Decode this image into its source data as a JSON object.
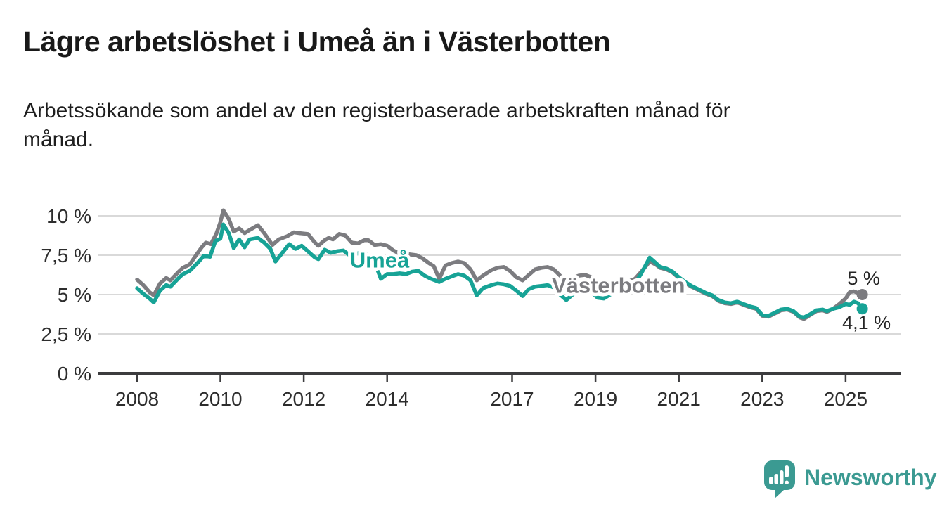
{
  "header": {
    "title": "Lägre arbetslöshet i Umeå än i Västerbotten",
    "subtitle_line1": "Arbetssökande som andel av den registerbaserade arbetskraften månad för",
    "subtitle_line2": "månad."
  },
  "footer": {
    "brand": "Newsworthy",
    "logo_icon": "speech-bubble-bar-chart-icon",
    "logo_color": "#3B9A92"
  },
  "chart_data": {
    "type": "line",
    "title": "Lägre arbetslöshet i Umeå än i Västerbotten",
    "subtitle": "Arbetssökande som andel av den registerbaserade arbetskraften månad för månad.",
    "x_unit": "decimal_year_monthly",
    "y_unit": "percent_of_registered_workforce",
    "xlim": [
      2007.073,
      2026.335
    ],
    "ylim": [
      0,
      10.5
    ],
    "grid": "horizontal",
    "axis_color": "#3C3C3E",
    "grid_color": "#D9D9D9",
    "y_ticks": [
      {
        "value": 0,
        "label": "0 %"
      },
      {
        "value": 2.5,
        "label": "2,5 %"
      },
      {
        "value": 5,
        "label": "5 %"
      },
      {
        "value": 7.5,
        "label": "7,5 %"
      },
      {
        "value": 10,
        "label": "10 %"
      }
    ],
    "x_ticks": [
      {
        "value": 2008,
        "label": "2008"
      },
      {
        "value": 2010,
        "label": "2010"
      },
      {
        "value": 2012,
        "label": "2012"
      },
      {
        "value": 2014,
        "label": "2014"
      },
      {
        "value": 2017,
        "label": "2017"
      },
      {
        "value": 2019,
        "label": "2019"
      },
      {
        "value": 2021,
        "label": "2021"
      },
      {
        "value": 2023,
        "label": "2023"
      },
      {
        "value": 2025,
        "label": "2025"
      }
    ],
    "series": [
      {
        "name": "Västerbotten",
        "color": "#7C7C80",
        "inline_label": {
          "text": "Västerbotten",
          "x": 2019.55,
          "y": 5.6
        },
        "end_label": "5 %",
        "end_value": 5.0,
        "points": [
          [
            2008.0,
            5.95
          ],
          [
            2008.15,
            5.6
          ],
          [
            2008.3,
            5.15
          ],
          [
            2008.4,
            4.95
          ],
          [
            2008.55,
            5.7
          ],
          [
            2008.7,
            6.05
          ],
          [
            2008.8,
            5.9
          ],
          [
            2009.0,
            6.45
          ],
          [
            2009.1,
            6.7
          ],
          [
            2009.26,
            6.9
          ],
          [
            2009.43,
            7.55
          ],
          [
            2009.55,
            8.0
          ],
          [
            2009.65,
            8.3
          ],
          [
            2009.77,
            8.2
          ],
          [
            2009.9,
            8.85
          ],
          [
            2010.0,
            9.6
          ],
          [
            2010.07,
            10.35
          ],
          [
            2010.2,
            9.8
          ],
          [
            2010.32,
            9.0
          ],
          [
            2010.45,
            9.2
          ],
          [
            2010.58,
            8.9
          ],
          [
            2010.7,
            9.1
          ],
          [
            2010.9,
            9.4
          ],
          [
            2011.05,
            8.9
          ],
          [
            2011.25,
            8.15
          ],
          [
            2011.4,
            8.5
          ],
          [
            2011.6,
            8.7
          ],
          [
            2011.76,
            8.95
          ],
          [
            2011.9,
            8.9
          ],
          [
            2012.1,
            8.85
          ],
          [
            2012.27,
            8.3
          ],
          [
            2012.35,
            8.1
          ],
          [
            2012.5,
            8.45
          ],
          [
            2012.6,
            8.6
          ],
          [
            2012.7,
            8.5
          ],
          [
            2012.85,
            8.85
          ],
          [
            2013.0,
            8.75
          ],
          [
            2013.15,
            8.3
          ],
          [
            2013.3,
            8.25
          ],
          [
            2013.45,
            8.45
          ],
          [
            2013.55,
            8.45
          ],
          [
            2013.7,
            8.15
          ],
          [
            2013.85,
            8.2
          ],
          [
            2014.0,
            8.1
          ],
          [
            2014.15,
            7.8
          ],
          [
            2014.3,
            7.6
          ],
          [
            2014.55,
            7.55
          ],
          [
            2014.7,
            7.5
          ],
          [
            2014.85,
            7.3
          ],
          [
            2015.0,
            7.0
          ],
          [
            2015.12,
            6.8
          ],
          [
            2015.25,
            6.0
          ],
          [
            2015.4,
            6.85
          ],
          [
            2015.55,
            7.0
          ],
          [
            2015.7,
            7.1
          ],
          [
            2015.85,
            7.0
          ],
          [
            2016.0,
            6.6
          ],
          [
            2016.15,
            5.9
          ],
          [
            2016.3,
            6.2
          ],
          [
            2016.5,
            6.55
          ],
          [
            2016.65,
            6.7
          ],
          [
            2016.8,
            6.75
          ],
          [
            2016.95,
            6.5
          ],
          [
            2017.1,
            6.1
          ],
          [
            2017.25,
            5.9
          ],
          [
            2017.4,
            6.25
          ],
          [
            2017.55,
            6.6
          ],
          [
            2017.7,
            6.7
          ],
          [
            2017.85,
            6.75
          ],
          [
            2018.0,
            6.6
          ],
          [
            2018.15,
            6.2
          ],
          [
            2018.3,
            5.9
          ],
          [
            2018.45,
            6.05
          ],
          [
            2018.6,
            6.2
          ],
          [
            2018.75,
            6.25
          ],
          [
            2018.9,
            6.1
          ],
          [
            2019.05,
            5.75
          ],
          [
            2019.2,
            5.55
          ],
          [
            2019.35,
            5.65
          ],
          [
            2019.5,
            5.7
          ],
          [
            2019.65,
            5.8
          ],
          [
            2019.8,
            5.85
          ],
          [
            2019.95,
            6.0
          ],
          [
            2020.1,
            6.45
          ],
          [
            2020.3,
            7.1
          ],
          [
            2020.45,
            6.9
          ],
          [
            2020.55,
            6.7
          ],
          [
            2020.7,
            6.6
          ],
          [
            2020.85,
            6.4
          ],
          [
            2021.0,
            6.05
          ],
          [
            2021.15,
            5.75
          ],
          [
            2021.3,
            5.5
          ],
          [
            2021.5,
            5.25
          ],
          [
            2021.65,
            5.05
          ],
          [
            2021.8,
            4.9
          ],
          [
            2021.95,
            4.6
          ],
          [
            2022.1,
            4.45
          ],
          [
            2022.25,
            4.4
          ],
          [
            2022.4,
            4.5
          ],
          [
            2022.55,
            4.35
          ],
          [
            2022.7,
            4.2
          ],
          [
            2022.85,
            4.1
          ],
          [
            2023.0,
            3.65
          ],
          [
            2023.15,
            3.6
          ],
          [
            2023.3,
            3.8
          ],
          [
            2023.45,
            4.0
          ],
          [
            2023.6,
            4.05
          ],
          [
            2023.75,
            3.9
          ],
          [
            2023.9,
            3.55
          ],
          [
            2024.0,
            3.45
          ],
          [
            2024.15,
            3.7
          ],
          [
            2024.3,
            3.95
          ],
          [
            2024.45,
            4.0
          ],
          [
            2024.55,
            3.9
          ],
          [
            2024.7,
            4.1
          ],
          [
            2024.85,
            4.4
          ],
          [
            2025.0,
            4.75
          ],
          [
            2025.1,
            5.15
          ],
          [
            2025.2,
            5.2
          ],
          [
            2025.3,
            5.1
          ],
          [
            2025.4,
            5.0
          ]
        ]
      },
      {
        "name": "Umeå",
        "color": "#17A396",
        "inline_label": {
          "text": "Umeå",
          "x": 2013.82,
          "y": 7.2
        },
        "end_label": "4,1 %",
        "end_value": 4.1,
        "points": [
          [
            2008.0,
            5.4
          ],
          [
            2008.15,
            5.05
          ],
          [
            2008.3,
            4.75
          ],
          [
            2008.4,
            4.5
          ],
          [
            2008.55,
            5.25
          ],
          [
            2008.7,
            5.6
          ],
          [
            2008.8,
            5.5
          ],
          [
            2009.0,
            6.05
          ],
          [
            2009.1,
            6.3
          ],
          [
            2009.26,
            6.5
          ],
          [
            2009.45,
            7.0
          ],
          [
            2009.6,
            7.45
          ],
          [
            2009.75,
            7.4
          ],
          [
            2009.88,
            8.4
          ],
          [
            2010.0,
            8.55
          ],
          [
            2010.07,
            9.45
          ],
          [
            2010.2,
            8.9
          ],
          [
            2010.32,
            7.95
          ],
          [
            2010.45,
            8.5
          ],
          [
            2010.58,
            8.0
          ],
          [
            2010.7,
            8.5
          ],
          [
            2010.9,
            8.6
          ],
          [
            2011.05,
            8.3
          ],
          [
            2011.2,
            7.9
          ],
          [
            2011.32,
            7.1
          ],
          [
            2011.5,
            7.7
          ],
          [
            2011.65,
            8.2
          ],
          [
            2011.8,
            7.9
          ],
          [
            2011.95,
            8.1
          ],
          [
            2012.1,
            7.75
          ],
          [
            2012.27,
            7.35
          ],
          [
            2012.35,
            7.25
          ],
          [
            2012.5,
            7.85
          ],
          [
            2012.65,
            7.65
          ],
          [
            2012.8,
            7.75
          ],
          [
            2012.95,
            7.8
          ],
          [
            2013.1,
            7.5
          ],
          [
            2013.25,
            7.6
          ],
          [
            2013.4,
            7.65
          ],
          [
            2013.6,
            7.45
          ],
          [
            2013.75,
            6.7
          ],
          [
            2013.85,
            6.0
          ],
          [
            2014.0,
            6.3
          ],
          [
            2014.15,
            6.3
          ],
          [
            2014.3,
            6.35
          ],
          [
            2014.45,
            6.3
          ],
          [
            2014.6,
            6.45
          ],
          [
            2014.75,
            6.5
          ],
          [
            2014.9,
            6.2
          ],
          [
            2015.05,
            6.0
          ],
          [
            2015.25,
            5.8
          ],
          [
            2015.4,
            6.0
          ],
          [
            2015.55,
            6.15
          ],
          [
            2015.7,
            6.3
          ],
          [
            2015.85,
            6.2
          ],
          [
            2016.0,
            5.9
          ],
          [
            2016.15,
            4.95
          ],
          [
            2016.3,
            5.4
          ],
          [
            2016.5,
            5.6
          ],
          [
            2016.65,
            5.7
          ],
          [
            2016.8,
            5.65
          ],
          [
            2016.95,
            5.55
          ],
          [
            2017.1,
            5.25
          ],
          [
            2017.25,
            4.9
          ],
          [
            2017.4,
            5.35
          ],
          [
            2017.55,
            5.5
          ],
          [
            2017.7,
            5.55
          ],
          [
            2017.85,
            5.6
          ],
          [
            2018.0,
            5.45
          ],
          [
            2018.15,
            5.0
          ],
          [
            2018.3,
            4.65
          ],
          [
            2018.45,
            5.0
          ],
          [
            2018.6,
            5.2
          ],
          [
            2018.75,
            5.3
          ],
          [
            2018.9,
            5.15
          ],
          [
            2019.05,
            4.8
          ],
          [
            2019.2,
            4.75
          ],
          [
            2019.35,
            5.0
          ],
          [
            2019.5,
            5.2
          ],
          [
            2019.65,
            5.35
          ],
          [
            2019.8,
            5.45
          ],
          [
            2019.95,
            5.7
          ],
          [
            2020.1,
            6.35
          ],
          [
            2020.3,
            7.35
          ],
          [
            2020.45,
            7.0
          ],
          [
            2020.55,
            6.75
          ],
          [
            2020.7,
            6.65
          ],
          [
            2020.85,
            6.45
          ],
          [
            2021.0,
            6.1
          ],
          [
            2021.15,
            5.8
          ],
          [
            2021.3,
            5.55
          ],
          [
            2021.5,
            5.3
          ],
          [
            2021.65,
            5.1
          ],
          [
            2021.8,
            4.95
          ],
          [
            2021.95,
            4.65
          ],
          [
            2022.1,
            4.5
          ],
          [
            2022.25,
            4.45
          ],
          [
            2022.4,
            4.55
          ],
          [
            2022.55,
            4.4
          ],
          [
            2022.7,
            4.25
          ],
          [
            2022.85,
            4.15
          ],
          [
            2023.0,
            3.7
          ],
          [
            2023.15,
            3.65
          ],
          [
            2023.3,
            3.85
          ],
          [
            2023.45,
            4.05
          ],
          [
            2023.6,
            4.1
          ],
          [
            2023.75,
            3.95
          ],
          [
            2023.9,
            3.6
          ],
          [
            2024.0,
            3.55
          ],
          [
            2024.15,
            3.75
          ],
          [
            2024.3,
            4.0
          ],
          [
            2024.45,
            4.05
          ],
          [
            2024.55,
            3.95
          ],
          [
            2024.7,
            4.1
          ],
          [
            2024.85,
            4.2
          ],
          [
            2025.0,
            4.4
          ],
          [
            2025.1,
            4.35
          ],
          [
            2025.2,
            4.55
          ],
          [
            2025.3,
            4.45
          ],
          [
            2025.4,
            4.1
          ]
        ]
      }
    ]
  }
}
